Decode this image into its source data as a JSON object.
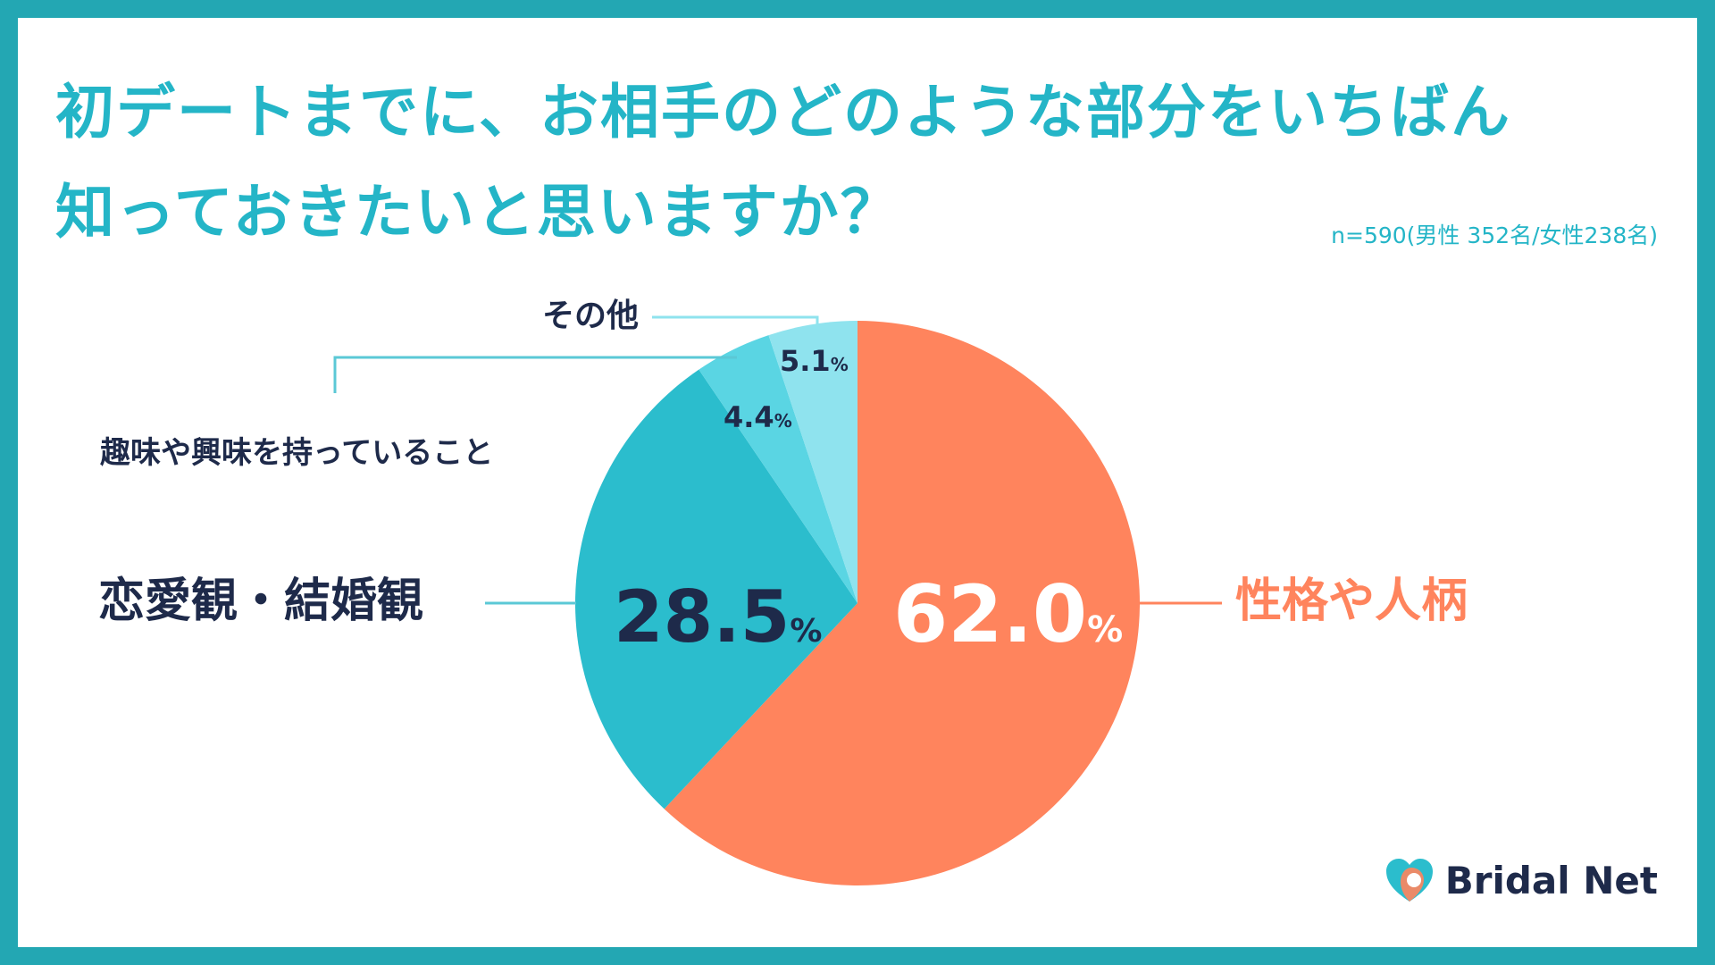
{
  "title": {
    "line1": "初デートまでに、お相手のどのような部分をいちばん",
    "line2": "知っておきたいと思いますか？"
  },
  "sample_note": "n=590(男性 352名/女性238名)",
  "chart_data": {
    "type": "pie",
    "title": "初デートまでに、お相手のどのような部分をいちばん知っておきたいと思いますか？",
    "categories": [
      "性格や人柄",
      "恋愛観・結婚観",
      "趣味や興味を持っていること",
      "その他"
    ],
    "values": [
      62.0,
      28.5,
      4.4,
      5.1
    ],
    "value_labels": [
      "62.0",
      "28.5",
      "4.4",
      "5.1"
    ],
    "unit": "%",
    "colors": [
      "#ff845d",
      "#2bbdcd",
      "#5ad5e3",
      "#8fe3ee"
    ],
    "start": "12 o'clock, clockwise"
  },
  "colors": {
    "frame": "#23a7b3",
    "accent": "#24b5c7",
    "dark_text": "#1e2a4a",
    "orange_text": "#ff845d",
    "leader_line": "#5bc8d6"
  },
  "logo": {
    "text": "Bridal Net",
    "icon": "heart-icon"
  }
}
